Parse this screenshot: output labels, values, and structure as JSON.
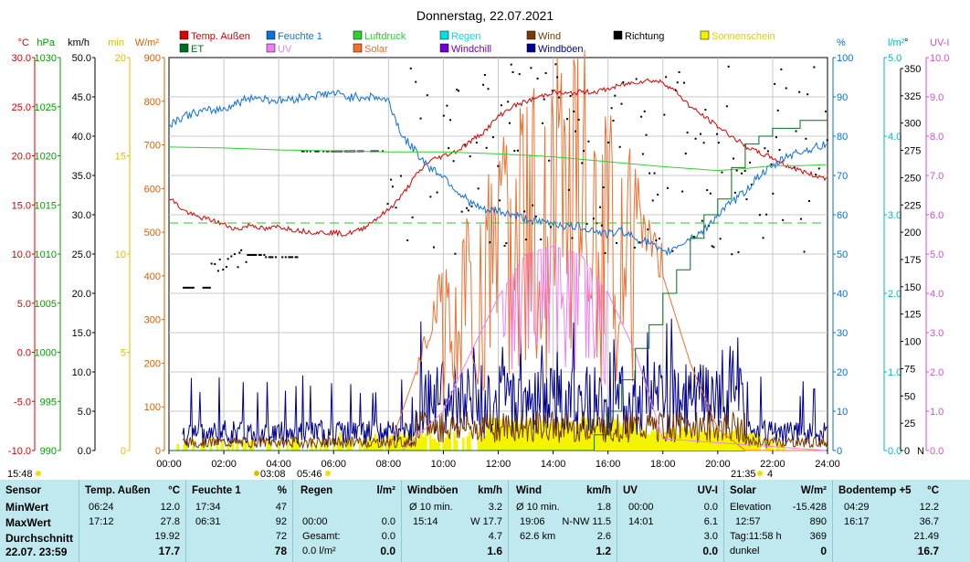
{
  "chart_data": {
    "type": "line",
    "title": "Donnerstag, 22.07.2021",
    "x_ticks": [
      "00:00",
      "02:00",
      "04:00",
      "06:00",
      "08:00",
      "10:00",
      "12:00",
      "14:00",
      "16:00",
      "18:00",
      "20:00",
      "22:00",
      "24:00"
    ],
    "left_axes": [
      {
        "unit": "°C",
        "color": "#dd0000",
        "ticks": [
          "30.0",
          "25.0",
          "20.0",
          "15.0",
          "10.0",
          "5.0",
          "0.0",
          "-5.0",
          "-10.0"
        ]
      },
      {
        "unit": "hPa",
        "color": "#00a000",
        "ticks": [
          "1030",
          "1025",
          "1020",
          "1015",
          "1010",
          "1005",
          "1000",
          "995",
          "990"
        ]
      },
      {
        "unit": "km/h",
        "color": "#000000",
        "ticks": [
          "50.0",
          "45.0",
          "40.0",
          "35.0",
          "30.0",
          "25.0",
          "20.0",
          "15.0",
          "10.0",
          "5.0",
          "0.0"
        ]
      },
      {
        "unit": "min",
        "color": "#d8c000",
        "ticks": [
          "20",
          "15",
          "10",
          "5",
          "0"
        ]
      },
      {
        "unit": "W/m²",
        "color": "#d86000",
        "ticks": [
          "900",
          "800",
          "700",
          "600",
          "500",
          "400",
          "300",
          "200",
          "100",
          "0"
        ]
      }
    ],
    "right_axes": [
      {
        "unit": "%",
        "color": "#0070d8",
        "ticks": [
          "100",
          "90",
          "80",
          "70",
          "60",
          "50",
          "40",
          "30",
          "20",
          "10",
          "0"
        ]
      },
      {
        "unit": "l/m²",
        "color": "#00b8c8",
        "ticks": [
          "5.0",
          "4.0",
          "3.0",
          "2.0",
          "1.0",
          "0.0"
        ]
      },
      {
        "unit": "°",
        "color": "#000000",
        "ticks": [
          "350",
          "325",
          "300",
          "275",
          "250",
          "225",
          "200",
          "175",
          "150",
          "125",
          "100",
          "75",
          "50",
          "25",
          "0"
        ]
      },
      {
        "unit": "UV-I",
        "color": "#d050d0",
        "ticks": [
          "10.0",
          "9.0",
          "8.0",
          "7.0",
          "6.0",
          "5.0",
          "4.0",
          "3.0",
          "2.0",
          "1.0",
          "0.0"
        ]
      }
    ],
    "legend": [
      {
        "label": "Temp. Außen",
        "color": "#dd0000"
      },
      {
        "label": "Feuchte 1",
        "color": "#1070e0"
      },
      {
        "label": "Luftdruck",
        "color": "#30d030"
      },
      {
        "label": "Regen",
        "color": "#00e0e0"
      },
      {
        "label": "Wind",
        "color": "#7a3a00"
      },
      {
        "label": "Richtung",
        "color": "#000000"
      },
      {
        "label": "Sonnenschein",
        "color": "#f0f000"
      },
      {
        "label": "ET",
        "color": "#007020"
      },
      {
        "label": "UV",
        "color": "#f080f0"
      },
      {
        "label": "Solar",
        "color": "#f07030"
      },
      {
        "label": "Windchill",
        "color": "#7000d0"
      },
      {
        "label": "Windböen",
        "color": "#000090"
      }
    ],
    "series": [
      {
        "name": "Temp. Außen",
        "x": [
          0,
          0.5,
          1,
          1.5,
          2,
          2.5,
          3,
          3.5,
          4,
          4.5,
          5,
          5.5,
          6,
          6.4,
          7,
          7.5,
          8,
          8.5,
          9,
          9.5,
          10,
          10.5,
          11,
          11.5,
          12,
          12.5,
          13,
          13.5,
          14,
          14.5,
          15,
          15.5,
          16,
          16.5,
          17,
          17.5,
          18,
          18.5,
          19,
          19.5,
          20,
          20.5,
          21,
          21.5,
          22,
          22.5,
          23,
          23.5,
          24
        ],
        "y": [
          15.8,
          14.5,
          13.8,
          13.5,
          13,
          12.5,
          13,
          12.5,
          12.8,
          12.5,
          12.3,
          12.2,
          12.2,
          12.0,
          12.5,
          13.5,
          14.5,
          16,
          18,
          19.5,
          20,
          20.5,
          21.5,
          22.5,
          24,
          25,
          25.5,
          26,
          26.5,
          26.3,
          26.5,
          26.5,
          26.8,
          27.2,
          27.5,
          27.7,
          27.5,
          26.5,
          25,
          24,
          23,
          22,
          21,
          20.3,
          19.8,
          19,
          18.5,
          18,
          17.7
        ]
      },
      {
        "name": "Feuchte 1",
        "x": [
          0,
          0.5,
          1,
          2,
          3,
          4,
          5,
          6,
          6.5,
          7,
          7.5,
          8,
          8.5,
          9,
          9.5,
          10,
          10.5,
          11,
          11.5,
          12,
          12.5,
          13,
          13.5,
          14,
          14.5,
          15,
          15.5,
          16,
          16.5,
          17,
          17.5,
          18,
          18.5,
          19,
          19.5,
          20,
          20.5,
          21,
          21.5,
          22,
          22.5,
          23,
          23.5,
          24
        ],
        "y": [
          83,
          85,
          86,
          87,
          90,
          89,
          90,
          91,
          90,
          90,
          90,
          89,
          80,
          76,
          72,
          70,
          66,
          63,
          61,
          61,
          60,
          59,
          58,
          58,
          57,
          57,
          56,
          55,
          56,
          54,
          53,
          50,
          52,
          54,
          56,
          60,
          63,
          66,
          70,
          72,
          75,
          76,
          77,
          78
        ]
      },
      {
        "name": "Luftdruck",
        "x": [
          0,
          2,
          4,
          6,
          8,
          10,
          12,
          14,
          16,
          18,
          20,
          21,
          22,
          23,
          24
        ],
        "y": [
          1020.9,
          1020.8,
          1020.6,
          1020.5,
          1020.4,
          1020.4,
          1020.2,
          1019.9,
          1019.4,
          1018.9,
          1018.5,
          1018.7,
          1019.0,
          1019.0,
          1019.1
        ]
      },
      {
        "name": "ET",
        "x": [
          0,
          15,
          15.5,
          16,
          16.5,
          17,
          17.5,
          18,
          18.5,
          19,
          19.5,
          20,
          20.5,
          21,
          21.5,
          22,
          22.5,
          23,
          24
        ],
        "y": [
          0,
          0,
          0.2,
          0.5,
          0.9,
          1.3,
          1.6,
          2.0,
          2.3,
          2.7,
          3.0,
          3.2,
          3.6,
          3.9,
          4.0,
          4.1,
          4.1,
          4.2,
          4.2
        ]
      }
    ]
  },
  "panel": {
    "corner_time": "15:48",
    "sunrise_label": "05:46",
    "moon_label": "03:08",
    "sunset_label": "21:35",
    "moon_phase": "4",
    "sensor": {
      "header": "Sensor",
      "min": "MinWert",
      "max": "MaxWert",
      "avg": "Durchschnitt",
      "now": "22.07. 23:59"
    },
    "temp": {
      "header": "Temp. Außen",
      "unit": "°C",
      "min_time": "06:24",
      "min": "12.0",
      "max_time": "17:12",
      "max": "27.8",
      "avg": "19.92",
      "now": "17.7"
    },
    "hum": {
      "header": "Feuchte 1",
      "unit": "%",
      "min_time": "17:34",
      "min": "47",
      "max_time": "06:31",
      "max": "92",
      "avg": "72",
      "now": "78"
    },
    "rain": {
      "header": "Regen",
      "unit": "l/m²",
      "r2a": "00:00",
      "r2b": "0.0",
      "r3a": "Gesamt:",
      "r3b": "0.0",
      "r4a": "0.0 l/m²",
      "now": "0.0"
    },
    "gust": {
      "header": "Windböen",
      "unit": "km/h",
      "r1a": "Ø 10 min.",
      "r1b": "3.2",
      "r2a": "15:14",
      "r2b": "W 17.7",
      "r3b": "4.7",
      "now": "1.6"
    },
    "wind": {
      "header": "Wind",
      "unit": "km/h",
      "r1a": "Ø 10 min.",
      "r1b": "1.8",
      "r2a": "19:06",
      "r2b": "N-NW 11.5",
      "r3a": "62.6 km",
      "r3b": "2.6",
      "now": "1.2"
    },
    "uv": {
      "header": "UV",
      "unit": "UV-I",
      "r1a": "00:00",
      "r1b": "0.0",
      "r2a": "14:01",
      "r2b": "6.1",
      "r3b": "3.0",
      "now": "0.0"
    },
    "solar": {
      "header": "Solar",
      "unit": "W/m²",
      "r1a": "Elevation",
      "r1b": "-15.428",
      "r2a": "12:57",
      "r2b": "890",
      "r3a": "Tag:11:58 h",
      "r3b": "369",
      "r4a": "dunkel",
      "now": "0"
    },
    "soil": {
      "header": "Bodentemp +5",
      "unit": "°C",
      "r1a": "04:29",
      "r1b": "12.2",
      "r2a": "16:17",
      "r2b": "36.7",
      "r3b": "21.49",
      "now": "16.7"
    }
  }
}
